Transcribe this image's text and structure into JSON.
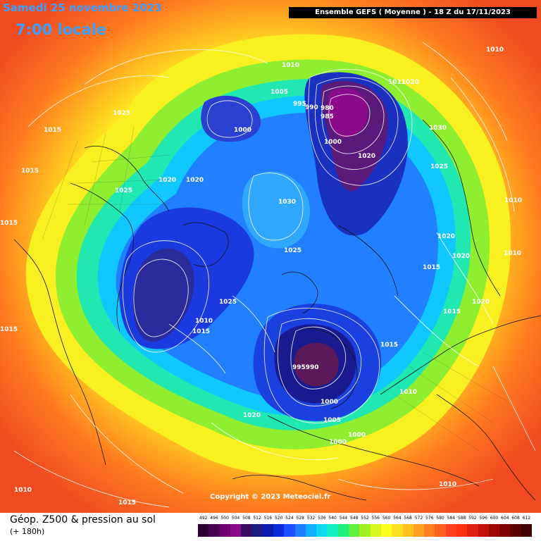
{
  "header": {
    "date": "Samedi 25 novembre 2023",
    "local_time": "7:00 locale",
    "run": "Ensemble GEFS  ( Moyenne )  -  18 Z du 17/11/2023"
  },
  "copyright": "Copyright © 2023 Meteociel.fr",
  "legend": {
    "title": "Géop. Z500 & pression au sol",
    "subtitle": "(+ 180h)",
    "values": [
      "492",
      "496",
      "500",
      "504",
      "508",
      "512",
      "516",
      "520",
      "524",
      "528",
      "532",
      "536",
      "540",
      "544",
      "548",
      "552",
      "556",
      "560",
      "564",
      "568",
      "572",
      "576",
      "580",
      "584",
      "588",
      "592",
      "596",
      "600",
      "604",
      "608",
      "612"
    ],
    "colors": [
      "#2a0030",
      "#4a0050",
      "#700070",
      "#8a0a8a",
      "#3a0a60",
      "#1a1a80",
      "#0a1ab0",
      "#0a2ad8",
      "#1a50ff",
      "#1a80ff",
      "#10b0ff",
      "#10d8f0",
      "#10f0c0",
      "#20f080",
      "#60f040",
      "#a0f020",
      "#d8f820",
      "#ffff20",
      "#ffe020",
      "#ffc020",
      "#ffa020",
      "#ff8020",
      "#ff6020",
      "#ff4020",
      "#f83010",
      "#e02010",
      "#c01008",
      "#a00808",
      "#800000",
      "#600000",
      "#400000"
    ]
  },
  "isobar_labels": [
    {
      "text": "1010"
    },
    {
      "text": "1005"
    },
    {
      "text": "995"
    },
    {
      "text": "990"
    },
    {
      "text": "985"
    },
    {
      "text": "980"
    },
    {
      "text": "1000"
    },
    {
      "text": "1020"
    },
    {
      "text": "1011020"
    },
    {
      "text": "1030"
    },
    {
      "text": "1025"
    },
    {
      "text": "1010"
    },
    {
      "text": "1025"
    },
    {
      "text": "1015"
    },
    {
      "text": "1015"
    },
    {
      "text": "1025"
    },
    {
      "text": "1020"
    },
    {
      "text": "1020"
    },
    {
      "text": "1030"
    },
    {
      "text": "1000"
    },
    {
      "text": "1025"
    },
    {
      "text": "1025"
    },
    {
      "text": "1010"
    },
    {
      "text": "1015"
    },
    {
      "text": "1015"
    },
    {
      "text": "1020"
    },
    {
      "text": "1020"
    },
    {
      "text": "1015"
    },
    {
      "text": "1015"
    },
    {
      "text": "1010"
    },
    {
      "text": "995990"
    },
    {
      "text": "1000"
    },
    {
      "text": "1005"
    },
    {
      "text": "1000"
    },
    {
      "text": "1000"
    },
    {
      "text": "1020"
    },
    {
      "text": "1010"
    },
    {
      "text": "1010"
    },
    {
      "text": "1015"
    },
    {
      "text": "1010"
    },
    {
      "text": "1015"
    },
    {
      "text": "1020"
    },
    {
      "text": "1010"
    },
    {
      "text": "1015"
    }
  ]
}
